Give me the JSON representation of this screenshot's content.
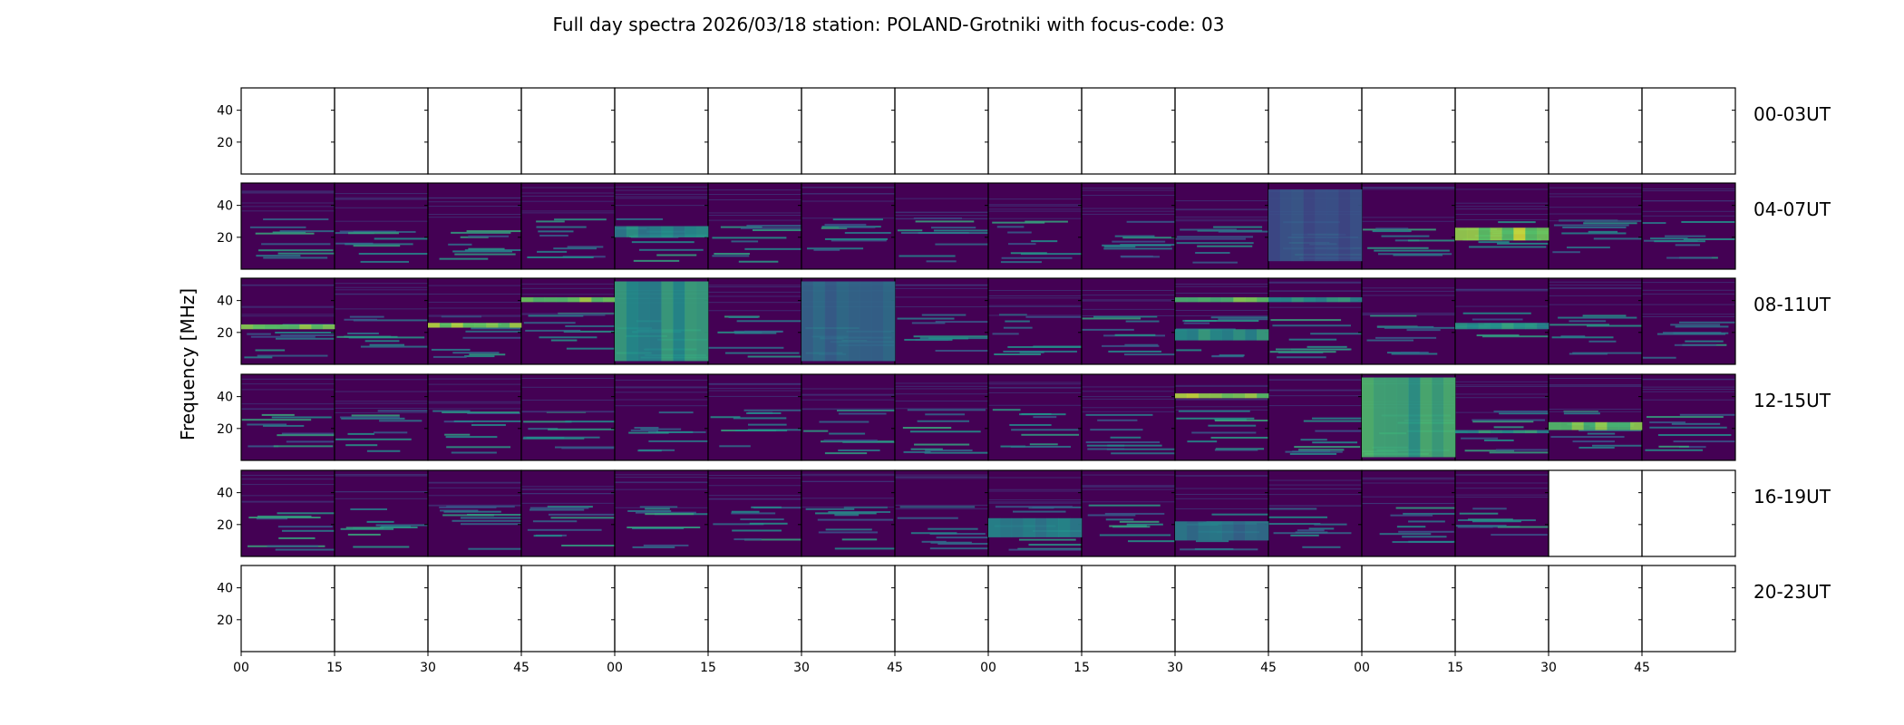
{
  "title": "Full day spectra 2026/03/18 station: POLAND-Grotniki with focus-code: 03",
  "chart_data": {
    "type": "heatmap",
    "title": "Full day spectra 2026/03/18 station: POLAND-Grotniki with focus-code: 03",
    "ylabel": "Frequency [MHz]",
    "xlabel": "",
    "ylim": [
      0,
      54
    ],
    "yticks": [
      20,
      40
    ],
    "xtick_labels": [
      "00",
      "15",
      "30",
      "45",
      "00",
      "15",
      "30",
      "45",
      "00",
      "15",
      "30",
      "45",
      "00",
      "15",
      "30",
      "45"
    ],
    "colormap": "viridis",
    "colors": [
      "#440154",
      "#3b528b",
      "#21918c",
      "#5ec962",
      "#fde725"
    ],
    "rows": [
      {
        "label": "00-03UT",
        "panels": [
          0,
          0,
          0,
          0,
          0,
          0,
          0,
          0,
          0,
          0,
          0,
          0,
          0,
          0,
          0,
          0
        ]
      },
      {
        "label": "04-07UT",
        "panels": [
          1,
          1,
          1,
          1,
          1,
          1,
          1,
          1,
          1,
          1,
          1,
          1,
          1,
          1,
          1,
          1
        ]
      },
      {
        "label": "08-11UT",
        "panels": [
          1,
          1,
          1,
          1,
          1,
          1,
          1,
          1,
          1,
          1,
          1,
          1,
          1,
          1,
          1,
          1
        ]
      },
      {
        "label": "12-15UT",
        "panels": [
          1,
          1,
          1,
          1,
          1,
          1,
          1,
          1,
          1,
          1,
          1,
          1,
          1,
          1,
          1,
          1
        ]
      },
      {
        "label": "16-19UT",
        "panels": [
          1,
          1,
          1,
          1,
          1,
          1,
          1,
          1,
          1,
          1,
          1,
          1,
          1,
          1,
          0,
          0
        ]
      },
      {
        "label": "20-23UT",
        "panels": [
          0,
          0,
          0,
          0,
          0,
          0,
          0,
          0,
          0,
          0,
          0,
          0,
          0,
          0,
          0,
          0
        ]
      }
    ],
    "features": [
      {
        "row": 1,
        "panel": 13,
        "band": [
          18,
          26
        ],
        "intensity": 0.95
      },
      {
        "row": 1,
        "panel": 4,
        "band": [
          20,
          27
        ],
        "intensity": 0.55
      },
      {
        "row": 1,
        "panel": 11,
        "band": [
          5,
          50
        ],
        "intensity": 0.3
      },
      {
        "row": 2,
        "panel": 0,
        "band": [
          22,
          25
        ],
        "intensity": 0.9
      },
      {
        "row": 2,
        "panel": 2,
        "band": [
          23,
          26
        ],
        "intensity": 0.9
      },
      {
        "row": 2,
        "panel": 3,
        "band": [
          39,
          42
        ],
        "intensity": 0.9
      },
      {
        "row": 2,
        "panel": 4,
        "band": [
          2,
          52
        ],
        "intensity": 0.6
      },
      {
        "row": 2,
        "panel": 6,
        "band": [
          2,
          52
        ],
        "intensity": 0.4
      },
      {
        "row": 2,
        "panel": 10,
        "band": [
          39,
          42
        ],
        "intensity": 0.85
      },
      {
        "row": 2,
        "panel": 10,
        "band": [
          15,
          22
        ],
        "intensity": 0.6
      },
      {
        "row": 2,
        "panel": 11,
        "band": [
          39,
          42
        ],
        "intensity": 0.6
      },
      {
        "row": 2,
        "panel": 13,
        "band": [
          22,
          26
        ],
        "intensity": 0.6
      },
      {
        "row": 3,
        "panel": 10,
        "band": [
          39,
          42
        ],
        "intensity": 0.95
      },
      {
        "row": 3,
        "panel": 12,
        "band": [
          2,
          52
        ],
        "intensity": 0.7
      },
      {
        "row": 3,
        "panel": 13,
        "band": [
          17,
          19
        ],
        "intensity": 0.6
      },
      {
        "row": 3,
        "panel": 14,
        "band": [
          19,
          24
        ],
        "intensity": 0.85
      },
      {
        "row": 4,
        "panel": 8,
        "band": [
          12,
          24
        ],
        "intensity": 0.5
      },
      {
        "row": 4,
        "panel": 10,
        "band": [
          10,
          22
        ],
        "intensity": 0.45
      }
    ]
  }
}
